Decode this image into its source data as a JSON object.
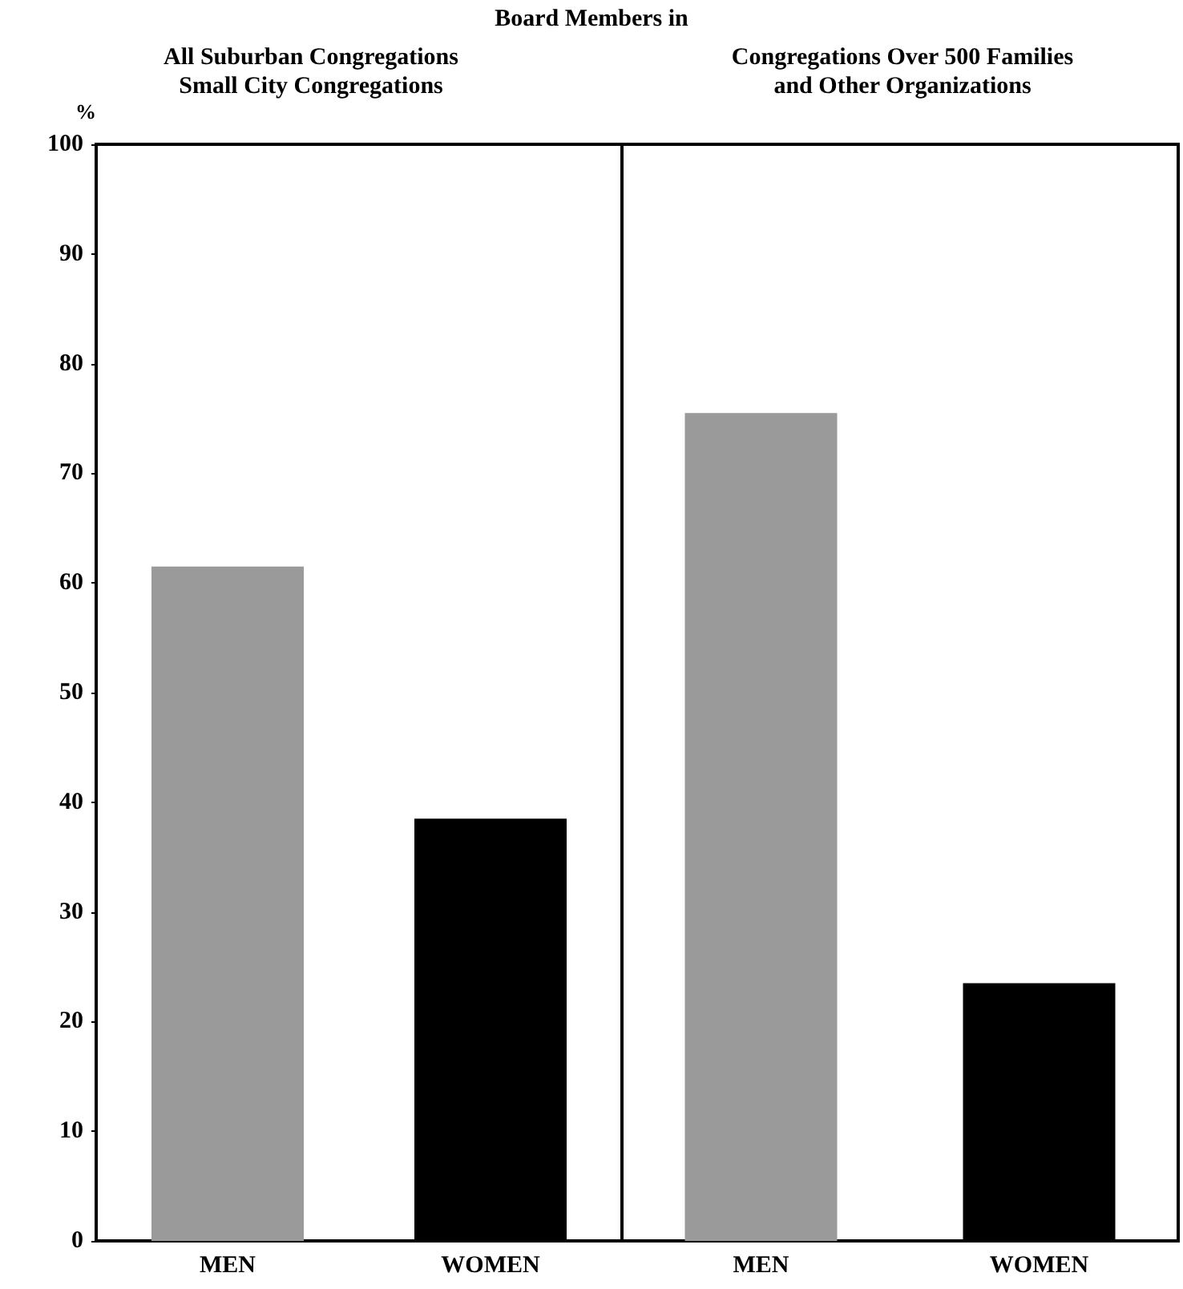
{
  "chart_data": [
    {
      "type": "bar",
      "title": "Board Members in",
      "subtitle": "All Suburban Congregations\nSmall City Congregations",
      "ylabel": "%",
      "categories": [
        "MEN",
        "WOMEN"
      ],
      "values": [
        61.5,
        38.5
      ],
      "colors": [
        "#9a9a9a",
        "#000000"
      ],
      "ylim": [
        0,
        100
      ],
      "yticks": [
        0,
        10,
        20,
        30,
        40,
        50,
        60,
        70,
        80,
        90,
        100
      ]
    },
    {
      "type": "bar",
      "subtitle": "Congregations Over 500 Families\nand Other Organizations",
      "categories": [
        "MEN",
        "WOMEN"
      ],
      "values": [
        75.5,
        23.5
      ],
      "colors": [
        "#9a9a9a",
        "#000000"
      ],
      "ylim": [
        0,
        100
      ],
      "yticks": [
        0,
        10,
        20,
        30,
        40,
        50,
        60,
        70,
        80,
        90,
        100
      ],
      "tick_labels": "x"
    }
  ]
}
